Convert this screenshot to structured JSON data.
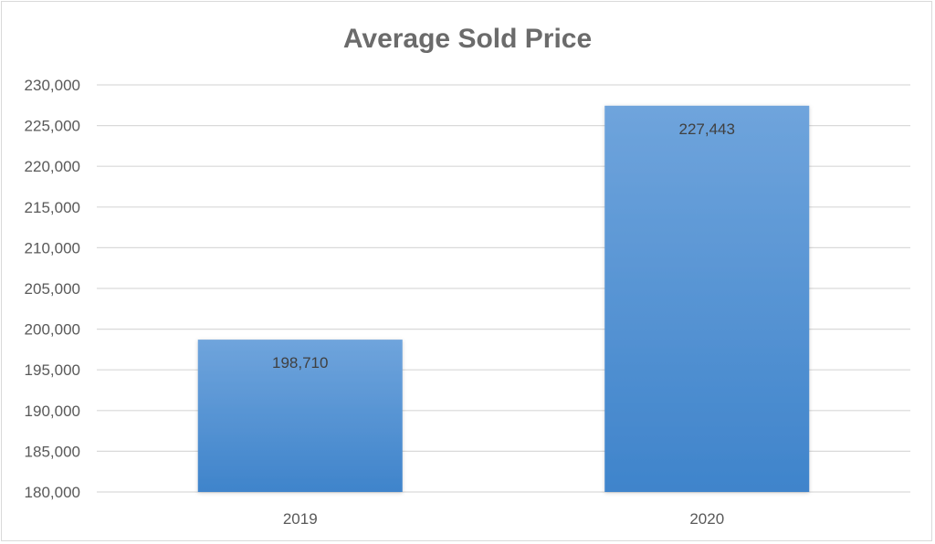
{
  "chart_data": {
    "type": "bar",
    "title": "Average Sold Price",
    "xlabel": "",
    "ylabel": "",
    "categories": [
      "2019",
      "2020"
    ],
    "series": [
      {
        "values": [
          198710,
          227443
        ],
        "data_labels": [
          "198,710",
          "227,443"
        ]
      }
    ],
    "ylim": [
      180000,
      230000
    ],
    "y_ticks": [
      180000,
      185000,
      190000,
      195000,
      200000,
      205000,
      210000,
      215000,
      220000,
      225000,
      230000
    ],
    "y_tick_labels": [
      "180,000",
      "185,000",
      "190,000",
      "195,000",
      "200,000",
      "205,000",
      "210,000",
      "215,000",
      "220,000",
      "225,000",
      "230,000"
    ],
    "grid": true,
    "legend": "none",
    "colors": {
      "bar_top": "#6fa4dc",
      "bar_bottom": "#3f84cb",
      "grid": "#d9d9d9",
      "title": "#6b6b6b",
      "text": "#595959"
    }
  }
}
